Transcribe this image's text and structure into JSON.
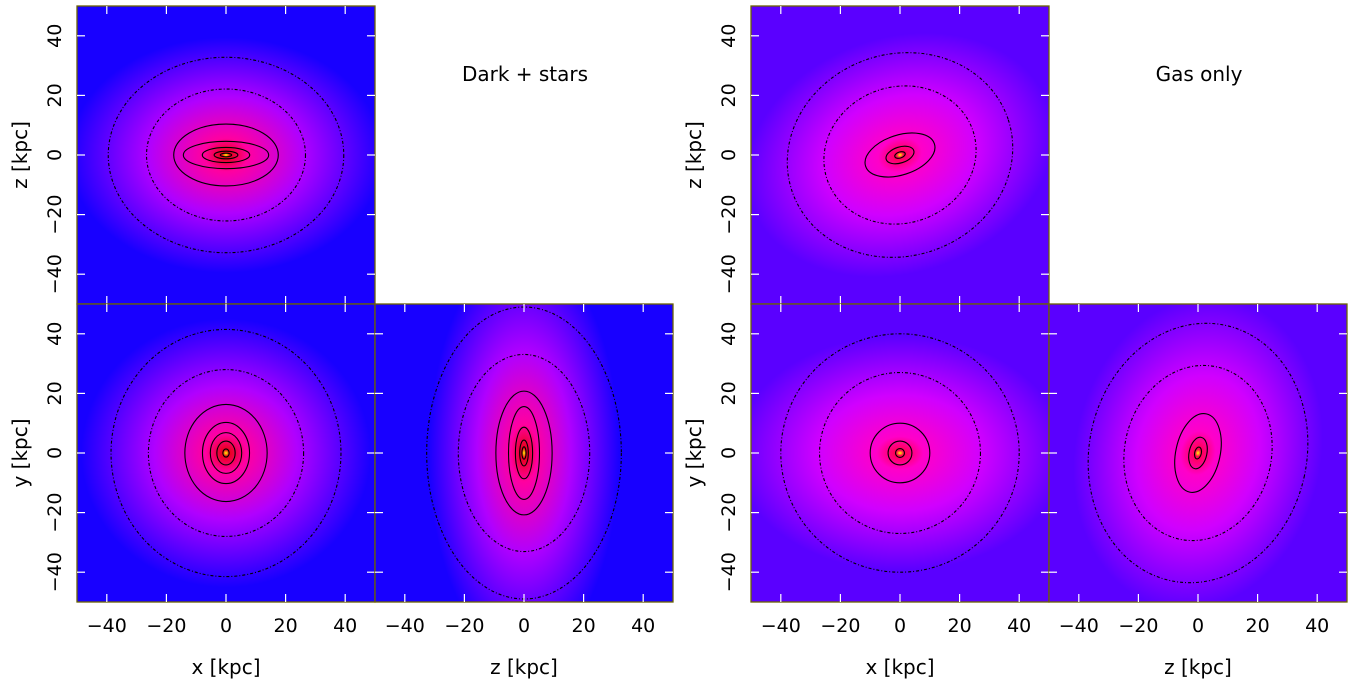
{
  "chart_data": [
    {
      "type": "heatmap",
      "title": "Dark + stars",
      "colors": {
        "outer": "#1800ff",
        "mid": "#b000ff",
        "inner": "#ff00a0",
        "core": "#e8001a",
        "peak": "#ffff00"
      },
      "panels": [
        {
          "id": "ds-xz",
          "xlabel": "",
          "ylabel": "z [kpc]",
          "xlim": [
            -50,
            50
          ],
          "ylim": [
            -50,
            50
          ],
          "yticks": [
            -40,
            -20,
            0,
            20,
            40
          ],
          "xticks": [],
          "shape": {
            "aspect": 0.32,
            "tilt": 0
          },
          "contours_kpc": [
            40,
            27,
            15,
            9,
            5,
            2.5,
            1.2
          ]
        },
        {
          "id": "ds-xy",
          "xlabel": "x [kpc]",
          "ylabel": "y [kpc]",
          "xlim": [
            -50,
            50
          ],
          "ylim": [
            -50,
            50
          ],
          "yticks": [
            -40,
            -20,
            0,
            20,
            40
          ],
          "xticks": [
            -40,
            -20,
            0,
            20,
            40
          ],
          "shape": {
            "aspect": 1.3,
            "tilt": 0
          },
          "contours_kpc": [
            40,
            27,
            15,
            9,
            6,
            3.5,
            1.2
          ]
        },
        {
          "id": "ds-zy",
          "xlabel": "z [kpc]",
          "ylabel": "",
          "xlim": [
            -50,
            50
          ],
          "ylim": [
            -50,
            50
          ],
          "yticks": [],
          "xticks": [
            -40,
            -20,
            0,
            20,
            40
          ],
          "shape": {
            "aspect": 3.0,
            "tilt": 0
          },
          "contours_kpc": [
            40,
            27,
            14,
            9,
            5,
            2.5,
            1.2
          ]
        }
      ]
    },
    {
      "type": "heatmap",
      "title": "Gas only",
      "colors": {
        "outer": "#5a00ff",
        "mid": "#d000ff",
        "inner": "#ff00c8",
        "core": "#ff0050",
        "peak": "#ffff00"
      },
      "panels": [
        {
          "id": "gas-xz",
          "xlabel": "",
          "ylabel": "z [kpc]",
          "xlim": [
            -50,
            50
          ],
          "ylim": [
            -50,
            50
          ],
          "yticks": [
            -40,
            -20,
            0,
            20,
            40
          ],
          "xticks": [],
          "shape": {
            "aspect": 0.55,
            "tilt": -18
          },
          "contours_kpc": [
            40,
            27,
            10,
            4,
            1.5
          ]
        },
        {
          "id": "gas-xy",
          "xlabel": "x [kpc]",
          "ylabel": "y [kpc]",
          "xlim": [
            -50,
            50
          ],
          "ylim": [
            -50,
            50
          ],
          "yticks": [
            -40,
            -20,
            0,
            20,
            40
          ],
          "xticks": [
            -40,
            -20,
            0,
            20,
            40
          ],
          "shape": {
            "aspect": 1.0,
            "tilt": 0
          },
          "contours_kpc": [
            40,
            27,
            10,
            4,
            1.5
          ]
        },
        {
          "id": "gas-zy",
          "xlabel": "z [kpc]",
          "ylabel": "",
          "xlim": [
            -50,
            50
          ],
          "ylim": [
            -50,
            50
          ],
          "yticks": [],
          "xticks": [
            -40,
            -20,
            0,
            20,
            40
          ],
          "shape": {
            "aspect": 1.8,
            "tilt": 12
          },
          "contours_kpc": [
            40,
            27,
            10,
            4,
            1.5
          ]
        }
      ]
    }
  ]
}
